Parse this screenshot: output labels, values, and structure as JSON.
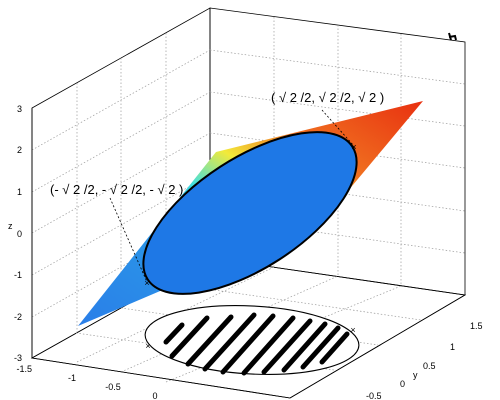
{
  "z_axis": {
    "label": "z",
    "ticks": [
      "3",
      "2",
      "1",
      "0",
      "-1",
      "-2",
      "-3"
    ]
  },
  "x_axis": {
    "ticks": [
      "-1.5",
      "-1",
      "-0.5",
      "0"
    ]
  },
  "y_axis": {
    "label": "y",
    "ticks": [
      "1.5",
      "1",
      "0.5",
      "0",
      "-0.5"
    ]
  },
  "annotations": {
    "top_point": "( √ 2 /2, √ 2 /2, √ 2 )",
    "bottom_point": "(- √ 2 /2, - √ 2 /2, - √ 2 )"
  },
  "colors": {
    "ellipse_fill": "#1e78e6",
    "plane_blue": "#2a7ee8",
    "plane_cyan": "#3fe0e0",
    "plane_yellow": "#f2ea3a",
    "plane_orange": "#f07020",
    "plane_red": "#e83010"
  }
}
